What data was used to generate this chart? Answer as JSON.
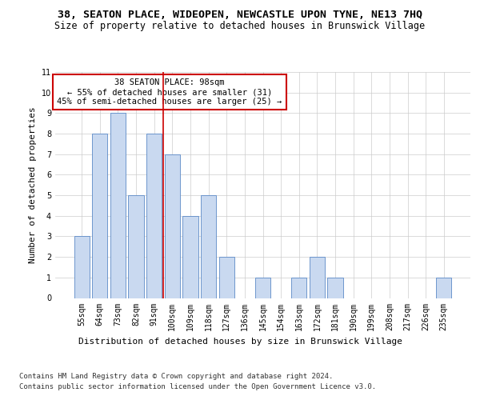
{
  "title": "38, SEATON PLACE, WIDEOPEN, NEWCASTLE UPON TYNE, NE13 7HQ",
  "subtitle": "Size of property relative to detached houses in Brunswick Village",
  "xlabel": "Distribution of detached houses by size in Brunswick Village",
  "ylabel": "Number of detached properties",
  "categories": [
    "55sqm",
    "64sqm",
    "73sqm",
    "82sqm",
    "91sqm",
    "100sqm",
    "109sqm",
    "118sqm",
    "127sqm",
    "136sqm",
    "145sqm",
    "154sqm",
    "163sqm",
    "172sqm",
    "181sqm",
    "190sqm",
    "199sqm",
    "208sqm",
    "217sqm",
    "226sqm",
    "235sqm"
  ],
  "values": [
    3,
    8,
    9,
    5,
    8,
    7,
    4,
    5,
    2,
    0,
    1,
    0,
    1,
    2,
    1,
    0,
    0,
    0,
    0,
    0,
    1
  ],
  "bar_color": "#c9d9f0",
  "bar_edge_color": "#5b8ac7",
  "grid_color": "#cccccc",
  "red_line_x": 4.5,
  "red_line_color": "#cc0000",
  "annotation_text": "38 SEATON PLACE: 98sqm\n← 55% of detached houses are smaller (31)\n45% of semi-detached houses are larger (25) →",
  "annotation_box_color": "#ffffff",
  "annotation_box_edge": "#cc0000",
  "footer1": "Contains HM Land Registry data © Crown copyright and database right 2024.",
  "footer2": "Contains public sector information licensed under the Open Government Licence v3.0.",
  "ylim": [
    0,
    11
  ],
  "yticks": [
    0,
    1,
    2,
    3,
    4,
    5,
    6,
    7,
    8,
    9,
    10,
    11
  ],
  "title_fontsize": 9.5,
  "subtitle_fontsize": 8.5,
  "xlabel_fontsize": 8,
  "ylabel_fontsize": 8,
  "tick_fontsize": 7,
  "footer_fontsize": 6.5,
  "ann_fontsize": 7.5
}
